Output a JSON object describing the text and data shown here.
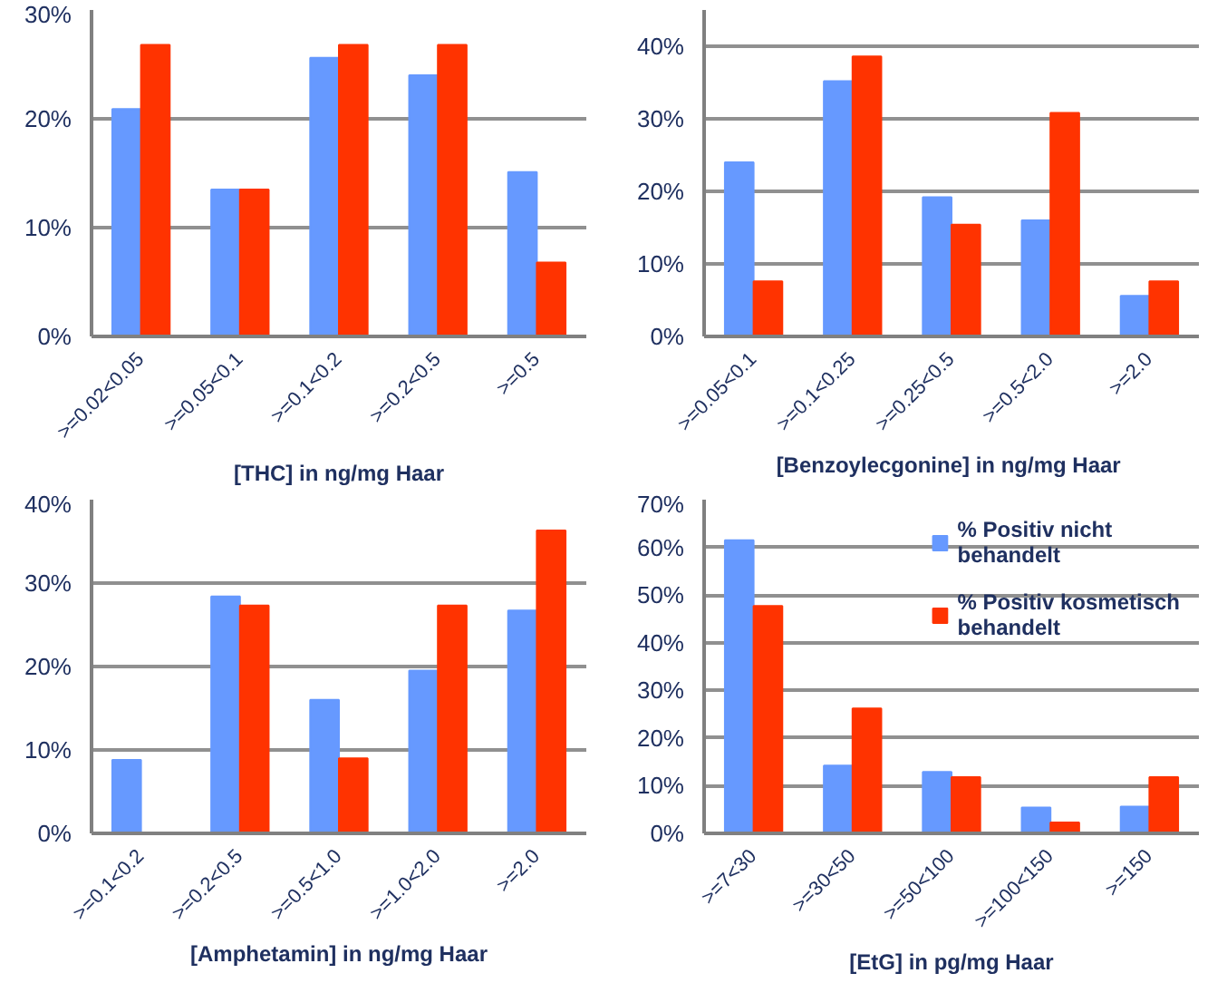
{
  "chart_data": [
    {
      "type": "bar",
      "xlabel": "[THC] in ng/mg Haar",
      "categories": [
        ">=0.02<0.05",
        ">=0.05<0.1",
        ">=0.1<0.2",
        ">=0.2<0.5",
        ">=0.5"
      ],
      "ylim": [
        0,
        30
      ],
      "yticks": [
        {
          "value": 0,
          "label": "0%"
        },
        {
          "value": 10,
          "label": "10%"
        },
        {
          "value": 20,
          "label": "20%"
        },
        {
          "value": 30,
          "label": "30%"
        }
      ],
      "grid": "y",
      "series": [
        {
          "color": "#6699ff",
          "values": [
            20.9,
            13.5,
            25.6,
            24.0,
            15.1
          ]
        },
        {
          "color": "#ff3300",
          "values": [
            26.8,
            13.5,
            26.8,
            26.8,
            6.8
          ]
        }
      ]
    },
    {
      "type": "bar",
      "xlabel": "[Benzoylecgonine]  in ng/mg Haar",
      "categories": [
        ">=0.05<0.1",
        ">=0.1<0.25",
        ">=0.25<0.5",
        ">=0.5<2.0",
        ">=2.0"
      ],
      "ylim": [
        0,
        45
      ],
      "yticks": [
        {
          "value": 0,
          "label": "0%"
        },
        {
          "value": 10,
          "label": "10%"
        },
        {
          "value": 20,
          "label": "20%"
        },
        {
          "value": 30,
          "label": "30%"
        },
        {
          "value": 40,
          "label": "40%"
        }
      ],
      "grid": "y",
      "series": [
        {
          "color": "#6699ff",
          "values": [
            24.0,
            35.2,
            19.2,
            16.0,
            5.6
          ]
        },
        {
          "color": "#ff3300",
          "values": [
            7.6,
            38.6,
            15.4,
            30.8,
            7.6
          ]
        }
      ]
    },
    {
      "type": "bar",
      "xlabel": "[Amphetamin] in ng/mg Haar",
      "categories": [
        ">=0.1<0.2",
        ">=0.2<0.5",
        ">=0.5<1.0",
        ">=1.0<2.0",
        ">=2.0"
      ],
      "ylim": [
        0,
        40
      ],
      "yticks": [
        {
          "value": 0,
          "label": "0%"
        },
        {
          "value": 10,
          "label": "10%"
        },
        {
          "value": 20,
          "label": "20%"
        },
        {
          "value": 30,
          "label": "30%"
        },
        {
          "value": 40,
          "label": "40%"
        }
      ],
      "grid": "y",
      "series": [
        {
          "color": "#6699ff",
          "values": [
            8.8,
            28.4,
            16.0,
            19.5,
            26.7
          ]
        },
        {
          "color": "#ff3300",
          "values": [
            0,
            27.3,
            9.0,
            27.3,
            36.3
          ]
        }
      ]
    },
    {
      "type": "bar",
      "xlabel": "[EtG] in pg/mg Haar",
      "categories": [
        ">=7<30",
        ">=30<50",
        ">=50<100",
        ">=100<150",
        ">=150"
      ],
      "ylim": [
        0,
        70
      ],
      "yticks": [
        {
          "value": 0,
          "label": "0%"
        },
        {
          "value": 10,
          "label": "10%"
        },
        {
          "value": 20,
          "label": "20%"
        },
        {
          "value": 30,
          "label": "30%"
        },
        {
          "value": 40,
          "label": "40%"
        },
        {
          "value": 50,
          "label": "50%"
        },
        {
          "value": 60,
          "label": "60%"
        },
        {
          "value": 70,
          "label": "70%"
        }
      ],
      "grid": "y",
      "legend": "top right",
      "series": [
        {
          "name": "% Positiv nicht behandelt",
          "color": "#6699ff",
          "values": [
            61.5,
            14.2,
            12.9,
            5.4,
            5.6
          ]
        },
        {
          "name": "% Positiv kosmetisch behandelt",
          "color": "#ff3300",
          "values": [
            47.7,
            26.2,
            11.8,
            2.3,
            11.8
          ]
        }
      ]
    }
  ]
}
